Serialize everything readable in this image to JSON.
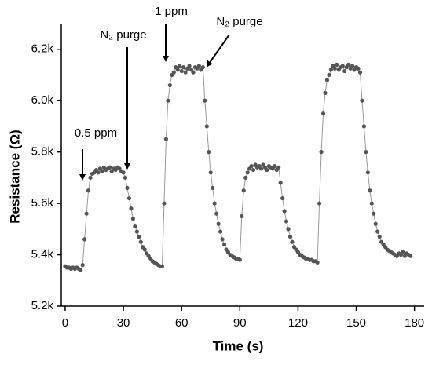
{
  "chart_data": {
    "type": "scatter-line",
    "xlabel": "Time (s)",
    "ylabel": "Resistance (Ω)",
    "xlim": [
      -2,
      185
    ],
    "xticks": [
      0,
      30,
      60,
      90,
      120,
      150,
      180
    ],
    "ylim": [
      5200,
      6300
    ],
    "yticks": [
      {
        "value": 5200,
        "label": "5.2k"
      },
      {
        "value": 5400,
        "label": "5.4k"
      },
      {
        "value": 5600,
        "label": "5.6k"
      },
      {
        "value": 5800,
        "label": "5.8k"
      },
      {
        "value": 6000,
        "label": "6.0k"
      },
      {
        "value": 6200,
        "label": "6.2k"
      }
    ],
    "color": "#555555",
    "line_color": "#999999",
    "annotations": [
      "0.5 ppm",
      "N₂ purge",
      "1 ppm",
      "N₂ purge"
    ],
    "x": [
      0,
      1,
      2,
      3,
      4,
      5,
      6,
      7,
      8,
      9,
      10,
      11,
      12,
      13,
      14,
      15,
      16,
      17,
      18,
      19,
      20,
      21,
      22,
      23,
      24,
      25,
      26,
      27,
      28,
      29,
      30,
      31,
      32,
      33,
      34,
      35,
      36,
      37,
      38,
      39,
      40,
      41,
      42,
      43,
      44,
      45,
      46,
      47,
      48,
      49,
      50,
      51,
      52,
      53,
      54,
      55,
      56,
      57,
      58,
      59,
      60,
      61,
      62,
      63,
      64,
      65,
      66,
      67,
      68,
      69,
      70,
      71,
      72,
      73,
      74,
      75,
      76,
      77,
      78,
      79,
      80,
      81,
      82,
      83,
      84,
      85,
      86,
      87,
      88,
      89,
      90,
      91,
      92,
      93,
      94,
      95,
      96,
      97,
      98,
      99,
      100,
      101,
      102,
      103,
      104,
      105,
      106,
      107,
      108,
      109,
      110,
      111,
      112,
      113,
      114,
      115,
      116,
      117,
      118,
      119,
      120,
      121,
      122,
      123,
      124,
      125,
      126,
      127,
      128,
      129,
      130,
      131,
      132,
      133,
      134,
      135,
      136,
      137,
      138,
      139,
      140,
      141,
      142,
      143,
      144,
      145,
      146,
      147,
      148,
      149,
      150,
      151,
      152,
      153,
      154,
      155,
      156,
      157,
      158,
      159,
      160,
      161,
      162,
      163,
      164,
      165,
      166,
      167,
      168,
      169,
      170,
      171,
      172,
      173,
      174,
      175,
      176,
      177,
      178
    ],
    "values": [
      5355,
      5350,
      5350,
      5345,
      5350,
      5345,
      5350,
      5345,
      5340,
      5360,
      5460,
      5560,
      5650,
      5700,
      5715,
      5720,
      5730,
      5720,
      5735,
      5725,
      5740,
      5730,
      5735,
      5740,
      5725,
      5735,
      5730,
      5740,
      5735,
      5725,
      5720,
      5700,
      5660,
      5620,
      5580,
      5540,
      5510,
      5490,
      5470,
      5450,
      5430,
      5420,
      5405,
      5395,
      5385,
      5375,
      5370,
      5365,
      5360,
      5355,
      5355,
      5600,
      5850,
      6000,
      6060,
      6100,
      6110,
      6130,
      6120,
      6135,
      6115,
      6130,
      6110,
      6125,
      6135,
      6120,
      6110,
      6130,
      6125,
      6135,
      6120,
      6130,
      6000,
      5900,
      5800,
      5720,
      5660,
      5600,
      5560,
      5520,
      5490,
      5460,
      5440,
      5420,
      5410,
      5400,
      5395,
      5390,
      5385,
      5385,
      5380,
      5550,
      5650,
      5700,
      5720,
      5735,
      5745,
      5730,
      5750,
      5740,
      5745,
      5735,
      5750,
      5740,
      5730,
      5745,
      5740,
      5735,
      5745,
      5730,
      5740,
      5680,
      5620,
      5570,
      5530,
      5500,
      5470,
      5450,
      5430,
      5420,
      5410,
      5400,
      5395,
      5390,
      5385,
      5385,
      5380,
      5380,
      5375,
      5375,
      5370,
      5600,
      5800,
      5950,
      6030,
      6080,
      6100,
      6120,
      6135,
      6125,
      6140,
      6120,
      6130,
      6135,
      6115,
      6130,
      6140,
      6125,
      6135,
      6120,
      6130,
      6125,
      6110,
      6000,
      5900,
      5800,
      5720,
      5650,
      5600,
      5560,
      5520,
      5490,
      5470,
      5450,
      5440,
      5430,
      5420,
      5415,
      5410,
      5405,
      5400,
      5395,
      5405,
      5400,
      5410,
      5395,
      5405,
      5400,
      5395
    ]
  }
}
